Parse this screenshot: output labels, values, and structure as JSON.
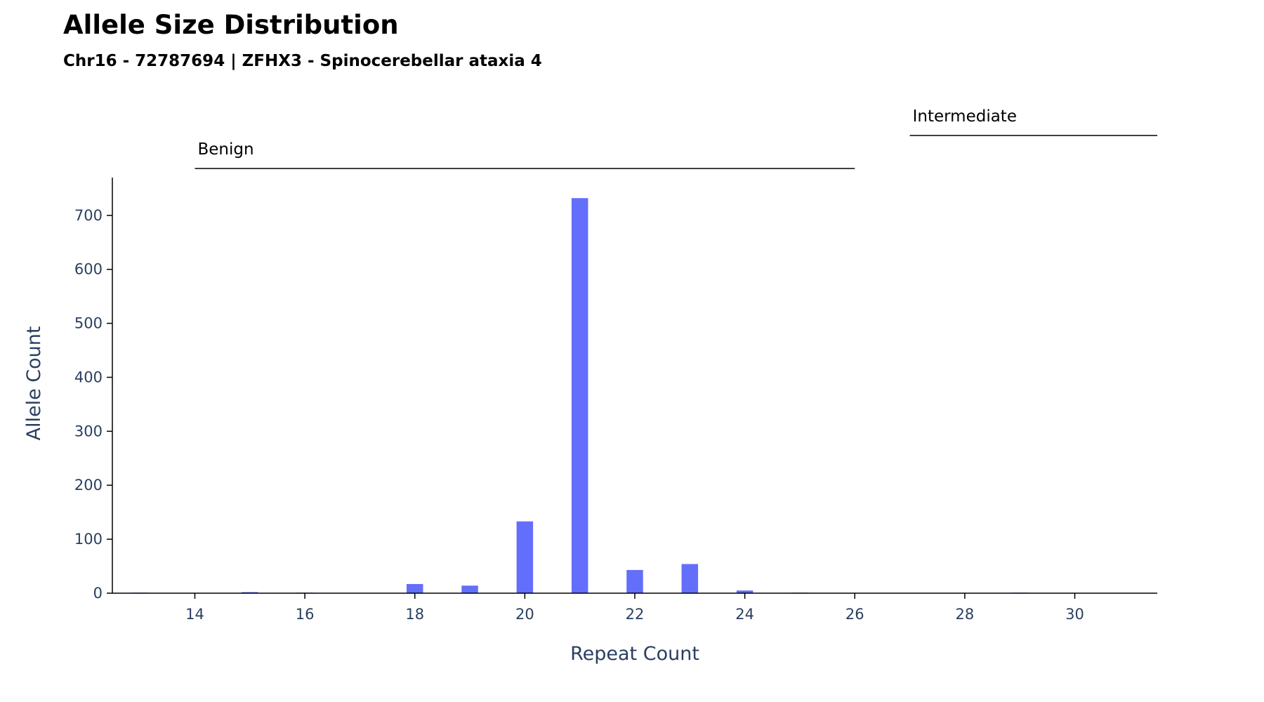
{
  "chart_data": {
    "type": "bar",
    "title": "Allele Size Distribution",
    "subtitle": "Chr16 - 72787694 | ZFHX3 - Spinocerebellar ataxia 4",
    "xlabel": "Repeat Count",
    "ylabel": "Allele Count",
    "xlim": [
      12.5,
      31.5
    ],
    "ylim": [
      0,
      770
    ],
    "x_ticks": [
      14,
      16,
      18,
      20,
      22,
      24,
      26,
      28,
      30
    ],
    "y_ticks": [
      0,
      100,
      200,
      300,
      400,
      500,
      600,
      700
    ],
    "bar_color": "#636efa",
    "x": [
      13,
      15,
      16,
      18,
      19,
      20,
      21,
      22,
      23,
      24,
      25,
      29
    ],
    "values": [
      1,
      2,
      1,
      17,
      14,
      133,
      732,
      43,
      54,
      5,
      1,
      1
    ],
    "regions": [
      {
        "label": "Benign",
        "start": 14,
        "end": 26
      },
      {
        "label": "Intermediate",
        "start": 27,
        "end": 31.5
      }
    ],
    "grid": false
  }
}
